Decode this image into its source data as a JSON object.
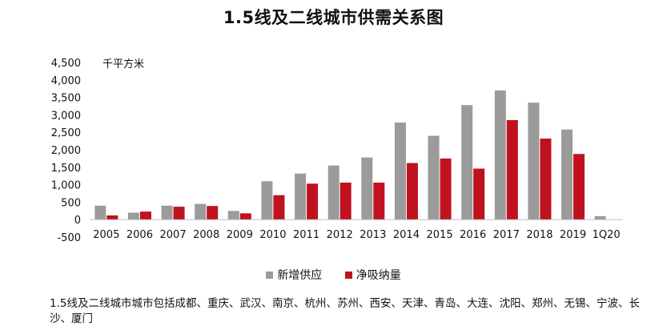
{
  "chart_data": {
    "type": "bar",
    "title": "1.5线及二线城市供需关系图",
    "unit_label": "千平方米",
    "categories": [
      "2005",
      "2006",
      "2007",
      "2008",
      "2009",
      "2010",
      "2011",
      "2012",
      "2013",
      "2014",
      "2015",
      "2016",
      "2017",
      "2018",
      "2019",
      "1Q20"
    ],
    "series": [
      {
        "name": "新增供应",
        "color": "#9b9b9b",
        "values": [
          400,
          200,
          400,
          450,
          250,
          1100,
          1320,
          1550,
          1780,
          2780,
          2400,
          3280,
          3700,
          3350,
          2580,
          100
        ]
      },
      {
        "name": "净吸纳量",
        "color": "#c0111f",
        "values": [
          120,
          230,
          370,
          390,
          180,
          700,
          1030,
          1060,
          1060,
          1620,
          1750,
          1460,
          2850,
          2320,
          1880,
          0
        ]
      }
    ],
    "ylim": [
      -500,
      4500
    ],
    "yticks": [
      "-500",
      "0",
      "500",
      "1,000",
      "1,500",
      "2,000",
      "2,500",
      "3,000",
      "3,500",
      "4,000",
      "4,500"
    ],
    "ytick_values": [
      -500,
      0,
      500,
      1000,
      1500,
      2000,
      2500,
      3000,
      3500,
      4000,
      4500
    ],
    "grid": false,
    "legend_position": "bottom"
  },
  "footnote": "1.5线及二线城市城市包括成都、重庆、武汉、南京、杭州、苏州、西安、天津、青岛、大连、沈阳、郑州、无锡、宁波、长沙、厦门"
}
